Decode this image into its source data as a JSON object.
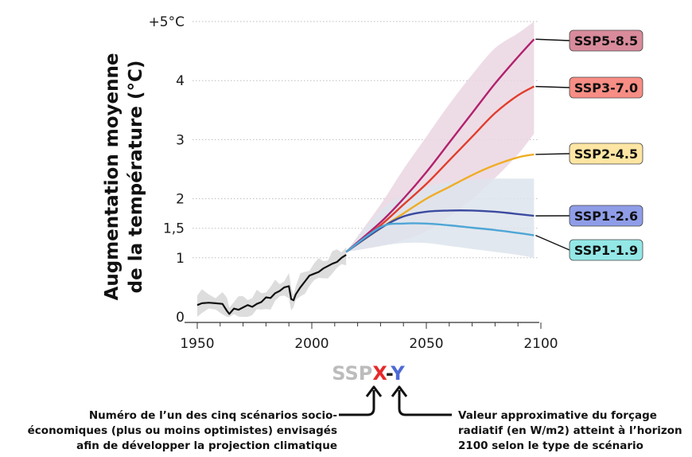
{
  "chart_data": {
    "type": "line",
    "title": "",
    "xlabel": "",
    "ylabel_lines": [
      "Augmentation moyenne",
      "de la température (°C)"
    ],
    "xlim": [
      1950,
      2100
    ],
    "ylim": [
      0,
      5
    ],
    "x_ticks": [
      1950,
      2000,
      2050,
      2100
    ],
    "y_ticks": [
      {
        "value": 0,
        "label": "0"
      },
      {
        "value": 1,
        "label": "1"
      },
      {
        "value": 1.5,
        "label": "1,5"
      },
      {
        "value": 2,
        "label": "2"
      },
      {
        "value": 3,
        "label": "3"
      },
      {
        "value": 4,
        "label": "4"
      },
      {
        "value": 5,
        "label": "+5°C"
      }
    ],
    "grid": true,
    "historical": {
      "color": "#111111",
      "band_color": "#d9d9d9",
      "x": [
        1950,
        1952,
        1955,
        1958,
        1961,
        1963,
        1964,
        1966,
        1968,
        1970,
        1972,
        1974,
        1976,
        1978,
        1980,
        1982,
        1984,
        1986,
        1988,
        1990,
        1991,
        1992,
        1993,
        1995,
        1997,
        1999,
        2001,
        2003,
        2005,
        2007,
        2009,
        2011,
        2013,
        2015
      ],
      "y": [
        0.2,
        0.23,
        0.24,
        0.23,
        0.22,
        0.1,
        0.05,
        0.14,
        0.12,
        0.16,
        0.2,
        0.17,
        0.22,
        0.25,
        0.33,
        0.32,
        0.4,
        0.44,
        0.5,
        0.52,
        0.3,
        0.28,
        0.38,
        0.5,
        0.6,
        0.7,
        0.73,
        0.76,
        0.82,
        0.86,
        0.9,
        0.93,
        1.0,
        1.05
      ]
    },
    "series": [
      {
        "name": "SSP5-8.5",
        "color": "#b2216e",
        "band_color": "#ead6e2",
        "label_bg": "#d98b9b",
        "x": [
          2015,
          2030,
          2040,
          2050,
          2060,
          2070,
          2080,
          2090,
          2097
        ],
        "y": [
          1.1,
          1.6,
          2.0,
          2.45,
          2.95,
          3.45,
          3.95,
          4.4,
          4.7
        ],
        "band_upper": [
          1.1,
          1.9,
          2.5,
          3.05,
          3.6,
          4.1,
          4.55,
          4.8,
          5.0
        ],
        "band_lower": [
          1.1,
          1.2,
          1.3,
          1.45,
          1.7,
          2.0,
          2.35,
          2.75,
          3.1
        ]
      },
      {
        "name": "SSP3-7.0",
        "color": "#e23d2c",
        "band_color": null,
        "label_bg": "#f78d84",
        "x": [
          2015,
          2030,
          2040,
          2050,
          2060,
          2070,
          2080,
          2090,
          2097
        ],
        "y": [
          1.1,
          1.55,
          1.9,
          2.25,
          2.65,
          3.05,
          3.45,
          3.75,
          3.9
        ]
      },
      {
        "name": "SSP2-4.5",
        "color": "#efad24",
        "band_color": null,
        "label_bg": "#fde6a3",
        "x": [
          2015,
          2030,
          2040,
          2050,
          2060,
          2070,
          2080,
          2090,
          2097
        ],
        "y": [
          1.1,
          1.5,
          1.75,
          2.0,
          2.2,
          2.4,
          2.57,
          2.7,
          2.75
        ]
      },
      {
        "name": "SSP1-2.6",
        "color": "#3c4ba0",
        "band_color": "#dde4ec",
        "label_bg": "#8f9de8",
        "x": [
          2015,
          2030,
          2040,
          2050,
          2060,
          2070,
          2080,
          2090,
          2097
        ],
        "y": [
          1.1,
          1.5,
          1.7,
          1.78,
          1.8,
          1.8,
          1.78,
          1.74,
          1.71
        ],
        "band_upper": [
          1.1,
          1.8,
          2.05,
          2.2,
          2.28,
          2.32,
          2.34,
          2.34,
          2.34
        ],
        "band_lower": [
          1.1,
          1.2,
          1.25,
          1.25,
          1.2,
          1.15,
          1.1,
          1.05,
          1.0
        ]
      },
      {
        "name": "SSP1-1.9",
        "color": "#4ea6d6",
        "band_color": null,
        "label_bg": "#93e8e6",
        "x": [
          2015,
          2030,
          2040,
          2050,
          2060,
          2070,
          2080,
          2090,
          2097
        ],
        "y": [
          1.1,
          1.52,
          1.58,
          1.58,
          1.55,
          1.51,
          1.47,
          1.42,
          1.38
        ]
      }
    ]
  },
  "formula": {
    "prefix": "SSP",
    "x": "X",
    "dash": "-",
    "y": "Y",
    "colors": {
      "prefix": "#bcbcbc",
      "x": "#e8282a",
      "dash": "#222222",
      "y": "#4e69d6"
    }
  },
  "notes": {
    "left": [
      "Numéro de l’un des cinq scénarios socio-",
      "économiques (plus ou moins optimistes) envisagés",
      "afin de développer la projection climatique"
    ],
    "right": [
      "Valeur approximative du forçage",
      "radiatif (en W/m2) atteint à l’horizon",
      "2100 selon le type de scénario"
    ]
  }
}
